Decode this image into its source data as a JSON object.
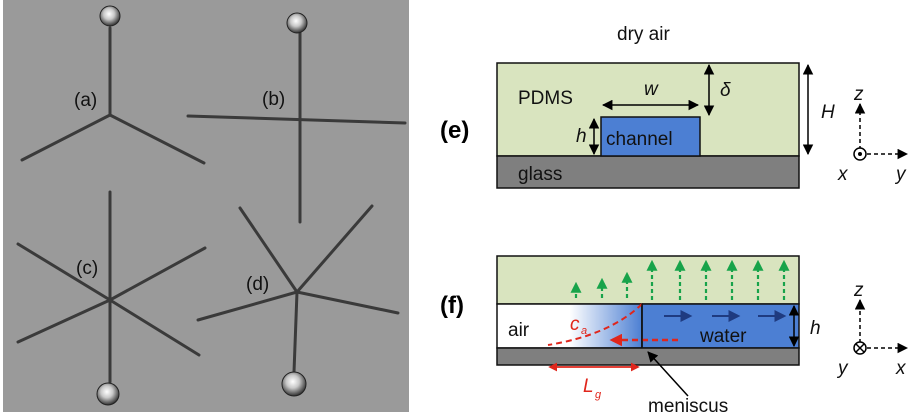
{
  "photo_panel": {
    "labels": [
      "(a)",
      "(b)",
      "(c)",
      "(d)"
    ],
    "colors": {
      "background": "#9a9a9a",
      "channel": "#3c3c3c"
    }
  },
  "panel_e": {
    "label": "(e)",
    "top_text": "dry air",
    "pdms": "PDMS",
    "channel": "channel",
    "glass": "glass",
    "dim_w": "w",
    "dim_h": "h",
    "dim_delta": "δ",
    "dim_H": "H",
    "axis_z": "z",
    "axis_x": "x",
    "axis_y": "y"
  },
  "panel_f": {
    "label": "(f)",
    "air": "air",
    "water": "water",
    "ca": "c",
    "ca_sub": "a",
    "lg": "L",
    "lg_sub": "g",
    "dim_h": "h",
    "meniscus": "meniscus",
    "axis_z": "z",
    "axis_x": "x",
    "axis_y": "y"
  },
  "colors": {
    "pdms": "#d9e4bf",
    "channel_blue": "#4c7fd3",
    "glass": "#7f7f7f",
    "arrow_green": "#17a34a",
    "arrow_red": "#e0261c",
    "arrow_navy": "#1f3b80"
  }
}
